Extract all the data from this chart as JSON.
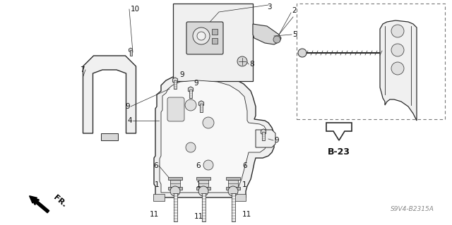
{
  "bg_color": "#ffffff",
  "fig_width": 6.4,
  "fig_height": 3.19,
  "diagram_code": "S9V4-B2315A",
  "ref_code": "B-23",
  "line_color": "#2a2a2a",
  "text_color": "#111111",
  "fill_light": "#f0f0f0",
  "fill_mid": "#d8d8d8",
  "fill_dark": "#b8b8b8"
}
